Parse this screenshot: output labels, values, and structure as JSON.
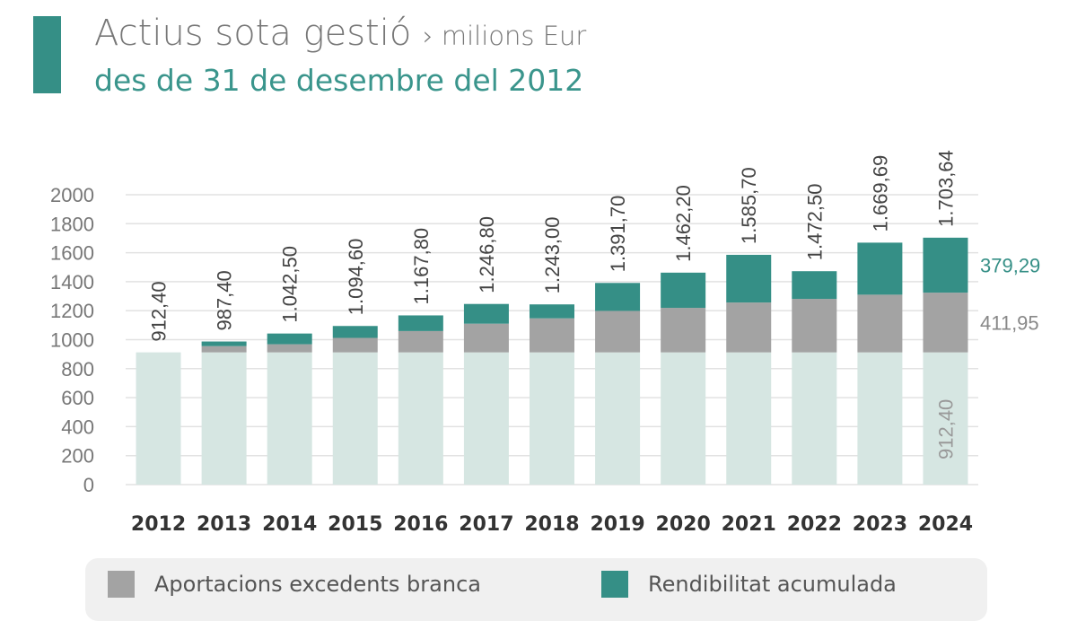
{
  "header": {
    "title": "Actius sota gestió",
    "unit": "› milions Eur",
    "subtitle": "des de 31 de desembre del 2012"
  },
  "colors": {
    "accent": "#358f86",
    "base": "#d6e6e2",
    "aportacions": "#a3a3a3",
    "rendibilitat": "#358f86",
    "grid": "#e2e2e2"
  },
  "chart_data": {
    "type": "bar",
    "stacked": true,
    "categories": [
      "2012",
      "2013",
      "2014",
      "2015",
      "2016",
      "2017",
      "2018",
      "2019",
      "2020",
      "2021",
      "2022",
      "2023",
      "2024"
    ],
    "series": [
      {
        "name": "",
        "values": [
          912.4,
          912.4,
          912.4,
          912.4,
          912.4,
          912.4,
          912.4,
          912.4,
          912.4,
          912.4,
          912.4,
          912.4,
          912.4
        ]
      },
      {
        "name": "Aportacions excedents branca",
        "values": [
          0,
          43,
          56,
          100,
          147,
          198,
          235,
          286,
          307,
          344,
          369,
          398,
          411.95
        ]
      },
      {
        "name": "Rendibilitat acumulada",
        "values": [
          0,
          32,
          74,
          82,
          108,
          136,
          96,
          193,
          243,
          329,
          191,
          359,
          379.29
        ]
      }
    ],
    "totals": [
      "912,40",
      "987,40",
      "1.042,50",
      "1.094,60",
      "1.167,80",
      "1.246,80",
      "1.243,00",
      "1.391,70",
      "1.462,20",
      "1.585,70",
      "1.472,50",
      "1.669,69",
      "1.703,64"
    ],
    "yticks": [
      "0",
      "200",
      "400",
      "600",
      "800",
      "1000",
      "1200",
      "1400",
      "1600",
      "1800",
      "2000"
    ],
    "ylim": [
      0,
      2000
    ],
    "grid": true,
    "annotations": {
      "rendibilitat_2024": "379,29",
      "aportacions_2024": "411,95",
      "base_2024": "912,40"
    },
    "legend_position": "bottom"
  },
  "legend": {
    "items": [
      {
        "label": "Aportacions excedents branca",
        "color": "#a3a3a3"
      },
      {
        "label": "Rendibilitat acumulada",
        "color": "#358f86"
      }
    ]
  }
}
